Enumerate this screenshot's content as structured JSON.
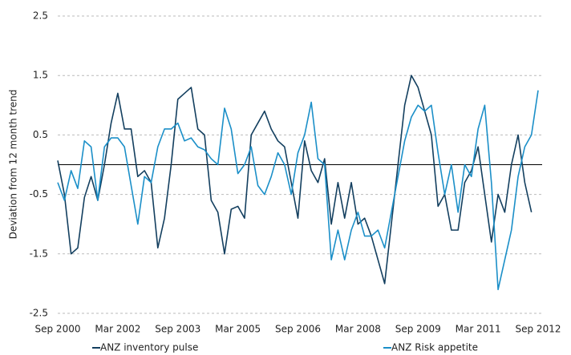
{
  "chart_data": {
    "type": "line",
    "y_label": "Deviation from 12 month trend",
    "categories": [
      "Sep 2000",
      null,
      null,
      null,
      null,
      null,
      null,
      null,
      null,
      "Mar 2002",
      null,
      null,
      null,
      null,
      null,
      null,
      null,
      null,
      "Sep 2003",
      null,
      null,
      null,
      null,
      null,
      null,
      null,
      null,
      "Mar 2005",
      null,
      null,
      null,
      null,
      null,
      null,
      null,
      null,
      "Sep 2006",
      null,
      null,
      null,
      null,
      null,
      null,
      null,
      null,
      "Mar 2008",
      null,
      null,
      null,
      null,
      null,
      null,
      null,
      null,
      "Sep 2009",
      null,
      null,
      null,
      null,
      null,
      null,
      null,
      null,
      "Mar 2011",
      null,
      null,
      null,
      null,
      null,
      null,
      null,
      null,
      "Sep 2012"
    ],
    "series": [
      {
        "name": "ANZ inventory pulse",
        "color": "#133f5f",
        "values": [
          0.07,
          -0.5,
          -1.5,
          -1.4,
          -0.55,
          -0.2,
          -0.6,
          0.0,
          0.7,
          1.2,
          0.6,
          0.6,
          -0.2,
          -0.1,
          -0.3,
          -1.4,
          -0.9,
          0.0,
          1.1,
          1.2,
          1.3,
          0.6,
          0.5,
          -0.6,
          -0.8,
          -1.5,
          -0.75,
          -0.7,
          -0.9,
          0.5,
          0.7,
          0.9,
          0.6,
          0.4,
          0.3,
          -0.3,
          -0.9,
          0.4,
          -0.1,
          -0.3,
          0.1,
          -1.0,
          -0.3,
          -0.9,
          -0.3,
          -1.0,
          -0.9,
          -1.2,
          -1.6,
          -2.0,
          -1.0,
          0.0,
          1.0,
          1.5,
          1.3,
          0.9,
          0.5,
          -0.7,
          -0.5,
          -1.1,
          -1.1,
          -0.3,
          -0.1,
          0.3,
          -0.5,
          -1.3,
          -0.5,
          -0.8,
          0.0,
          0.5,
          -0.3,
          -0.8,
          null
        ]
      },
      {
        "name": "ANZ Risk appetite",
        "color": "#1b8fc8",
        "values": [
          -0.3,
          -0.6,
          -0.1,
          -0.4,
          0.4,
          0.3,
          -0.6,
          0.3,
          0.45,
          0.45,
          0.3,
          -0.35,
          -1.0,
          -0.2,
          -0.3,
          0.3,
          0.6,
          0.6,
          0.7,
          0.4,
          0.45,
          0.3,
          0.25,
          0.1,
          0.0,
          0.95,
          0.6,
          -0.15,
          0.0,
          0.3,
          -0.35,
          -0.5,
          -0.2,
          0.2,
          0.0,
          -0.5,
          0.2,
          0.5,
          1.05,
          0.1,
          0.0,
          -1.6,
          -1.1,
          -1.6,
          -1.1,
          -0.8,
          -1.2,
          -1.2,
          -1.1,
          -1.4,
          -0.8,
          -0.2,
          0.4,
          0.8,
          1.0,
          0.9,
          1.0,
          0.2,
          -0.5,
          0.0,
          -0.8,
          0.0,
          -0.2,
          0.6,
          1.0,
          -0.3,
          -2.1,
          -1.6,
          -1.1,
          -0.2,
          0.3,
          0.5,
          1.25
        ]
      }
    ],
    "ylim": [
      -2.5,
      2.5
    ],
    "yticks": [
      -2.5,
      -1.5,
      -0.5,
      0.5,
      1.5,
      2.5
    ],
    "grid": true
  }
}
